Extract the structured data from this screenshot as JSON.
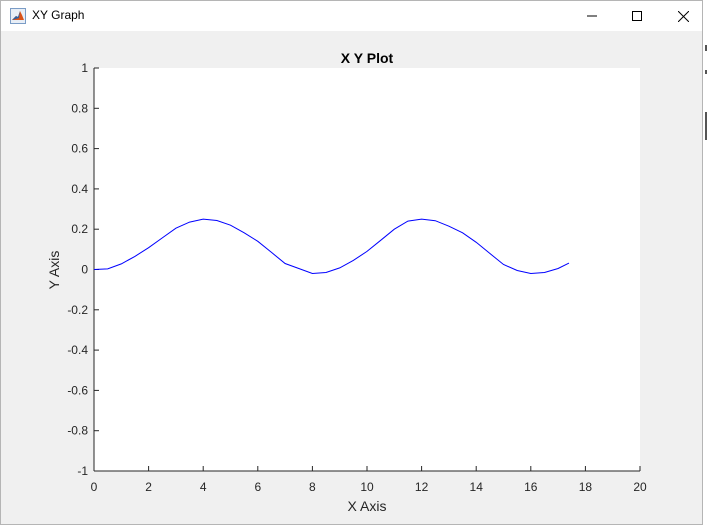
{
  "window": {
    "title": "XY Graph",
    "accent": "#0072bd"
  },
  "controls": {
    "minimize": "minimize-icon",
    "maximize": "maximize-icon",
    "close": "close-icon"
  },
  "chart_data": {
    "type": "line",
    "title": "X Y Plot",
    "xlabel": "X Axis",
    "ylabel": "Y Axis",
    "xlim": [
      0,
      20
    ],
    "ylim": [
      -1,
      1
    ],
    "xticks": [
      "0",
      "2",
      "4",
      "6",
      "8",
      "10",
      "12",
      "14",
      "16",
      "18",
      "20"
    ],
    "yticks": [
      "-1",
      "-0.8",
      "-0.6",
      "-0.4",
      "-0.2",
      "0",
      "0.2",
      "0.4",
      "0.6",
      "0.8",
      "1"
    ],
    "grid": false,
    "line_color": "#0000ff",
    "series": [
      {
        "x": [
          0,
          0.5,
          1,
          1.5,
          2,
          2.5,
          3,
          3.5,
          4,
          4.5,
          5,
          5.5,
          6,
          6.5,
          7,
          7.5,
          8,
          8.5,
          9,
          9.5,
          10,
          10.5,
          11,
          11.5,
          12,
          12.5,
          13,
          13.5,
          14,
          14.5,
          15,
          15.5,
          16,
          16.5,
          17,
          17.4
        ],
        "y": [
          0,
          0.003,
          0.028,
          0.065,
          0.108,
          0.157,
          0.205,
          0.235,
          0.25,
          0.243,
          0.22,
          0.182,
          0.14,
          0.085,
          0.03,
          0.005,
          -0.02,
          -0.015,
          0.008,
          0.045,
          0.09,
          0.145,
          0.2,
          0.24,
          0.25,
          0.242,
          0.215,
          0.182,
          0.135,
          0.08,
          0.025,
          -0.005,
          -0.02,
          -0.015,
          0.005,
          0.032
        ]
      }
    ]
  }
}
